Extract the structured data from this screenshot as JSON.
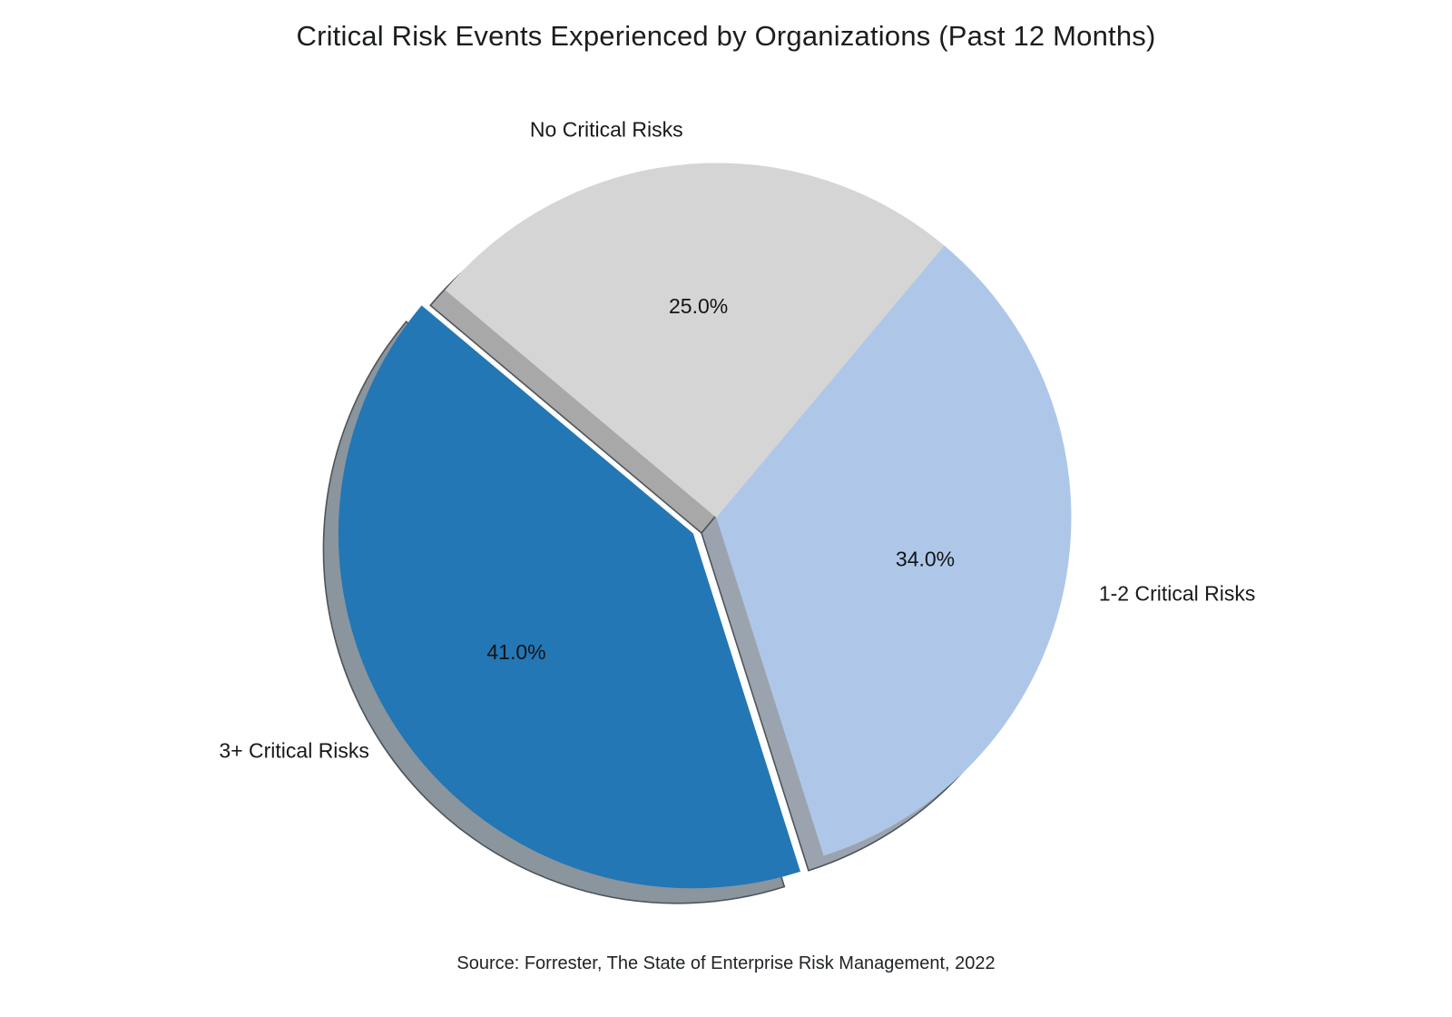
{
  "chart_data": {
    "type": "pie",
    "title": "Critical Risk Events Experienced by Organizations (Past 12 Months)",
    "source": "Source: Forrester, The State of Enterprise Risk Management, 2022",
    "unit": "percent",
    "start_angle": 140,
    "direction": "clockwise",
    "shadow": true,
    "label_distance": 1.1,
    "pct_distance": 0.6,
    "slices": [
      {
        "label": "No Critical Risks",
        "value": 25.0,
        "display": "25.0%",
        "color": "#d5d5d5",
        "shadow_fill": "#a8a8a8",
        "explode": 0
      },
      {
        "label": "1-2 Critical Risks",
        "value": 34.0,
        "display": "34.0%",
        "color": "#aec7e9",
        "shadow_fill": "#9ba4ae",
        "explode": 0
      },
      {
        "label": "3+ Critical Risks",
        "value": 41.0,
        "display": "41.0%",
        "color": "#2377b5",
        "shadow_fill": "#8b959d",
        "explode": 0.082
      }
    ],
    "colors": {
      "background": "#ffffff",
      "shadow_edge": "#4d545a",
      "text": "#1b1d1f"
    }
  }
}
